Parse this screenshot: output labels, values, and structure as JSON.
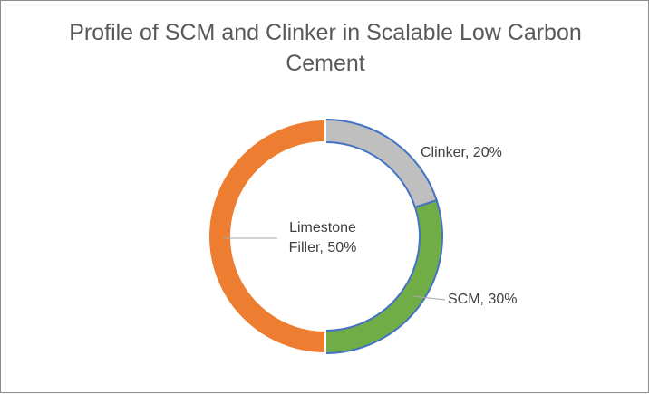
{
  "chart_data": {
    "type": "donut",
    "title": "Profile of SCM and Clinker in Scalable Low Carbon Cement",
    "values": [
      20,
      30,
      50
    ],
    "value_labels": [
      "Clinker, 20%",
      "SCM, 30%",
      "Limestone Filler, 50%"
    ],
    "colors": [
      "#bfbfbf",
      "#70ad47",
      "#ed7d31"
    ],
    "edge_colors": [
      "#4472c4",
      "#4472c4",
      "#ffffff"
    ]
  }
}
